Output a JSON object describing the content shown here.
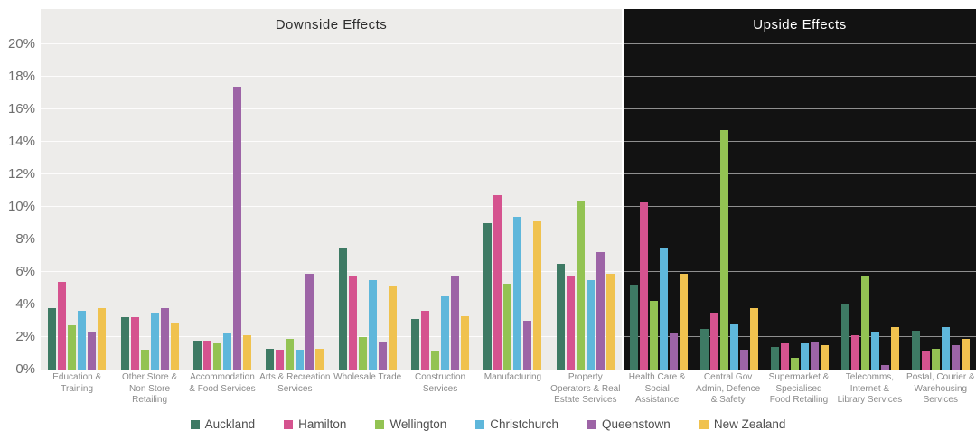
{
  "chart_data": {
    "type": "bar",
    "unit": "%",
    "ylim": [
      0,
      22
    ],
    "y_ticks": [
      "0%",
      "2%",
      "4%",
      "6%",
      "8%",
      "10%",
      "12%",
      "14%",
      "16%",
      "18%",
      "20%"
    ],
    "grid": "horizontal every 2%",
    "legend_position": "bottom-center",
    "series": [
      {
        "name": "Auckland",
        "color": "#3E7A64"
      },
      {
        "name": "Hamilton",
        "color": "#D5538F"
      },
      {
        "name": "Wellington",
        "color": "#93C353"
      },
      {
        "name": "Christchurch",
        "color": "#5FB7DB"
      },
      {
        "name": "Queenstown",
        "color": "#9D64A6"
      },
      {
        "name": "New Zealand",
        "color": "#F0C24F"
      }
    ],
    "panels": [
      {
        "id": "downside",
        "title": "Downside Effects",
        "theme": {
          "bg": "#EDECEA",
          "grid": "#FFFFFF",
          "title_color": "#2E2E2E"
        },
        "categories": [
          "Education & Training",
          "Other Store & Non Store Retailing",
          "Accommodation & Food Services",
          "Arts & Recreation Services",
          "Wholesale Trade",
          "Construction Services",
          "Manufacturing",
          "Property Operators & Real Estate Services"
        ],
        "series": [
          {
            "name": "Auckland",
            "values": [
              3.8,
              3.2,
              1.8,
              1.3,
              7.5,
              3.1,
              9.0,
              6.5
            ]
          },
          {
            "name": "Hamilton",
            "values": [
              5.4,
              3.2,
              1.8,
              1.2,
              5.8,
              3.6,
              10.7,
              5.8
            ]
          },
          {
            "name": "Wellington",
            "values": [
              2.7,
              1.2,
              1.6,
              1.9,
              2.0,
              1.1,
              5.3,
              10.4
            ]
          },
          {
            "name": "Christchurch",
            "values": [
              3.6,
              3.5,
              2.2,
              1.2,
              5.5,
              4.5,
              9.4,
              5.5
            ]
          },
          {
            "name": "Queenstown",
            "values": [
              2.3,
              3.8,
              17.4,
              5.9,
              1.7,
              5.8,
              3.0,
              7.2
            ]
          },
          {
            "name": "New Zealand",
            "values": [
              3.8,
              2.9,
              2.1,
              1.3,
              5.1,
              3.3,
              9.1,
              5.9
            ]
          }
        ]
      },
      {
        "id": "upside",
        "title": "Upside Effects",
        "theme": {
          "bg": "#121212",
          "grid": "#8F8F8F",
          "title_color": "#FFFFFF"
        },
        "categories": [
          "Health Care & Social Assistance",
          "Central Gov Admin, Defence & Safety",
          "Supermarket & Specialised Food Retailing",
          "Telecomms, Internet & Library Services",
          "Postal, Courier & Warehousing Services"
        ],
        "series": [
          {
            "name": "Auckland",
            "values": [
              5.2,
              2.5,
              1.4,
              4.0,
              2.4
            ]
          },
          {
            "name": "Hamilton",
            "values": [
              10.3,
              3.5,
              1.6,
              2.1,
              1.1
            ]
          },
          {
            "name": "Wellington",
            "values": [
              4.2,
              14.7,
              0.7,
              5.8,
              1.3
            ]
          },
          {
            "name": "Christchurch",
            "values": [
              7.5,
              2.8,
              1.6,
              2.3,
              2.6
            ]
          },
          {
            "name": "Queenstown",
            "values": [
              2.2,
              1.2,
              1.7,
              0.3,
              1.5
            ]
          },
          {
            "name": "New Zealand",
            "values": [
              5.9,
              3.8,
              1.5,
              2.6,
              1.9
            ]
          }
        ]
      }
    ]
  }
}
